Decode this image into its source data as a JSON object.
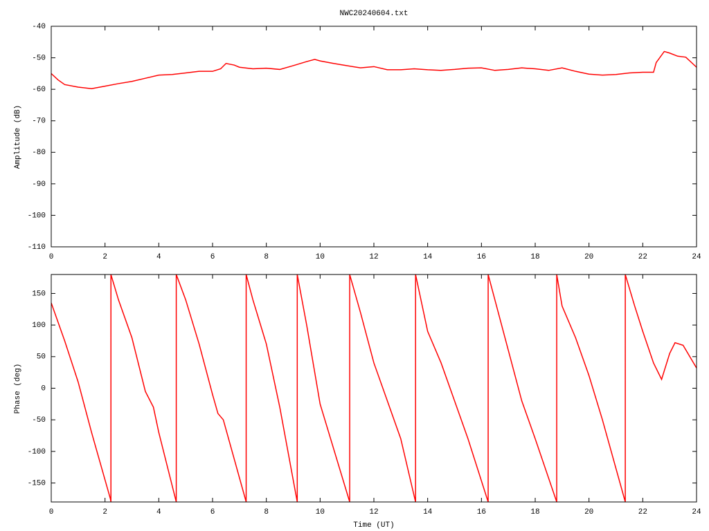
{
  "chart_data": [
    {
      "type": "line",
      "title": "NWC20240604.txt",
      "ylabel": "Amplitude (dB)",
      "color": "#ff0000",
      "x": [
        0,
        0.25,
        0.5,
        1,
        1.5,
        2,
        2.5,
        3,
        3.5,
        4,
        4.5,
        5,
        5.5,
        6,
        6.3,
        6.5,
        6.8,
        7,
        7.5,
        8,
        8.5,
        9,
        9.5,
        9.8,
        10,
        10.5,
        11,
        11.5,
        12,
        12.5,
        13,
        13.5,
        14,
        14.5,
        15,
        15.5,
        16,
        16.5,
        17,
        17.5,
        18,
        18.5,
        19,
        19.5,
        20,
        20.5,
        21,
        21.5,
        22,
        22.4,
        22.5,
        22.8,
        23,
        23.3,
        23.6,
        24
      ],
      "values": [
        -55,
        -57,
        -58.5,
        -59.3,
        -59.8,
        -59,
        -58.2,
        -57.5,
        -56.5,
        -55.5,
        -55.3,
        -54.8,
        -54.3,
        -54.3,
        -53.5,
        -51.8,
        -52.3,
        -53,
        -53.5,
        -53.3,
        -53.7,
        -52.5,
        -51.2,
        -50.5,
        -51,
        -51.8,
        -52.5,
        -53.2,
        -52.8,
        -53.8,
        -53.8,
        -53.5,
        -53.8,
        -54,
        -53.7,
        -53.3,
        -53.2,
        -54,
        -53.7,
        -53.2,
        -53.5,
        -54,
        -53.2,
        -54.3,
        -55.2,
        -55.5,
        -55.3,
        -54.8,
        -54.6,
        -54.6,
        -51.5,
        -48,
        -48.5,
        -49.5,
        -49.8,
        -53
      ],
      "xlim": [
        0,
        24
      ],
      "xticks": [
        0,
        2,
        4,
        6,
        8,
        10,
        12,
        14,
        16,
        18,
        20,
        22,
        24
      ],
      "ylim": [
        -110,
        -40
      ],
      "yticks": [
        -40,
        -50,
        -60,
        -70,
        -80,
        -90,
        -100,
        -110
      ]
    },
    {
      "type": "line",
      "xlabel": "Time (UT)",
      "ylabel": "Phase (deg)",
      "color": "#ff0000",
      "x": [
        0,
        0.5,
        1,
        1.5,
        2.2,
        2.22,
        2.22,
        2.5,
        3,
        3.5,
        3.8,
        4,
        4.65,
        4.65,
        5,
        5.5,
        6,
        6.2,
        6.4,
        7.25,
        7.25,
        7.5,
        8,
        8.5,
        9.15,
        9.15,
        9.5,
        10,
        11.1,
        11.1,
        11.5,
        12,
        12.5,
        13,
        13.55,
        13.55,
        14,
        14.5,
        15,
        15.5,
        16.25,
        16.25,
        16.5,
        17,
        17.5,
        18,
        18.8,
        18.8,
        19,
        19.5,
        20,
        20.5,
        21.35,
        21.35,
        21.7,
        22,
        22.4,
        22.7,
        23,
        23.2,
        23.5,
        24
      ],
      "values": [
        135,
        75,
        10,
        -70,
        -175,
        -180,
        180,
        140,
        80,
        -5,
        -30,
        -70,
        -180,
        180,
        140,
        70,
        -10,
        -40,
        -50,
        -180,
        180,
        140,
        70,
        -30,
        -180,
        180,
        100,
        -25,
        -180,
        180,
        120,
        40,
        -20,
        -80,
        -180,
        180,
        90,
        40,
        -20,
        -80,
        -180,
        180,
        140,
        60,
        -20,
        -80,
        -180,
        180,
        130,
        80,
        20,
        -50,
        -180,
        180,
        130,
        90,
        40,
        14,
        55,
        72,
        68,
        32
      ],
      "xlim": [
        0,
        24
      ],
      "xticks": [
        0,
        2,
        4,
        6,
        8,
        10,
        12,
        14,
        16,
        18,
        20,
        22,
        24
      ],
      "ylim": [
        -180,
        180
      ],
      "yticks": [
        -150,
        -100,
        -50,
        0,
        50,
        100,
        150
      ]
    }
  ]
}
